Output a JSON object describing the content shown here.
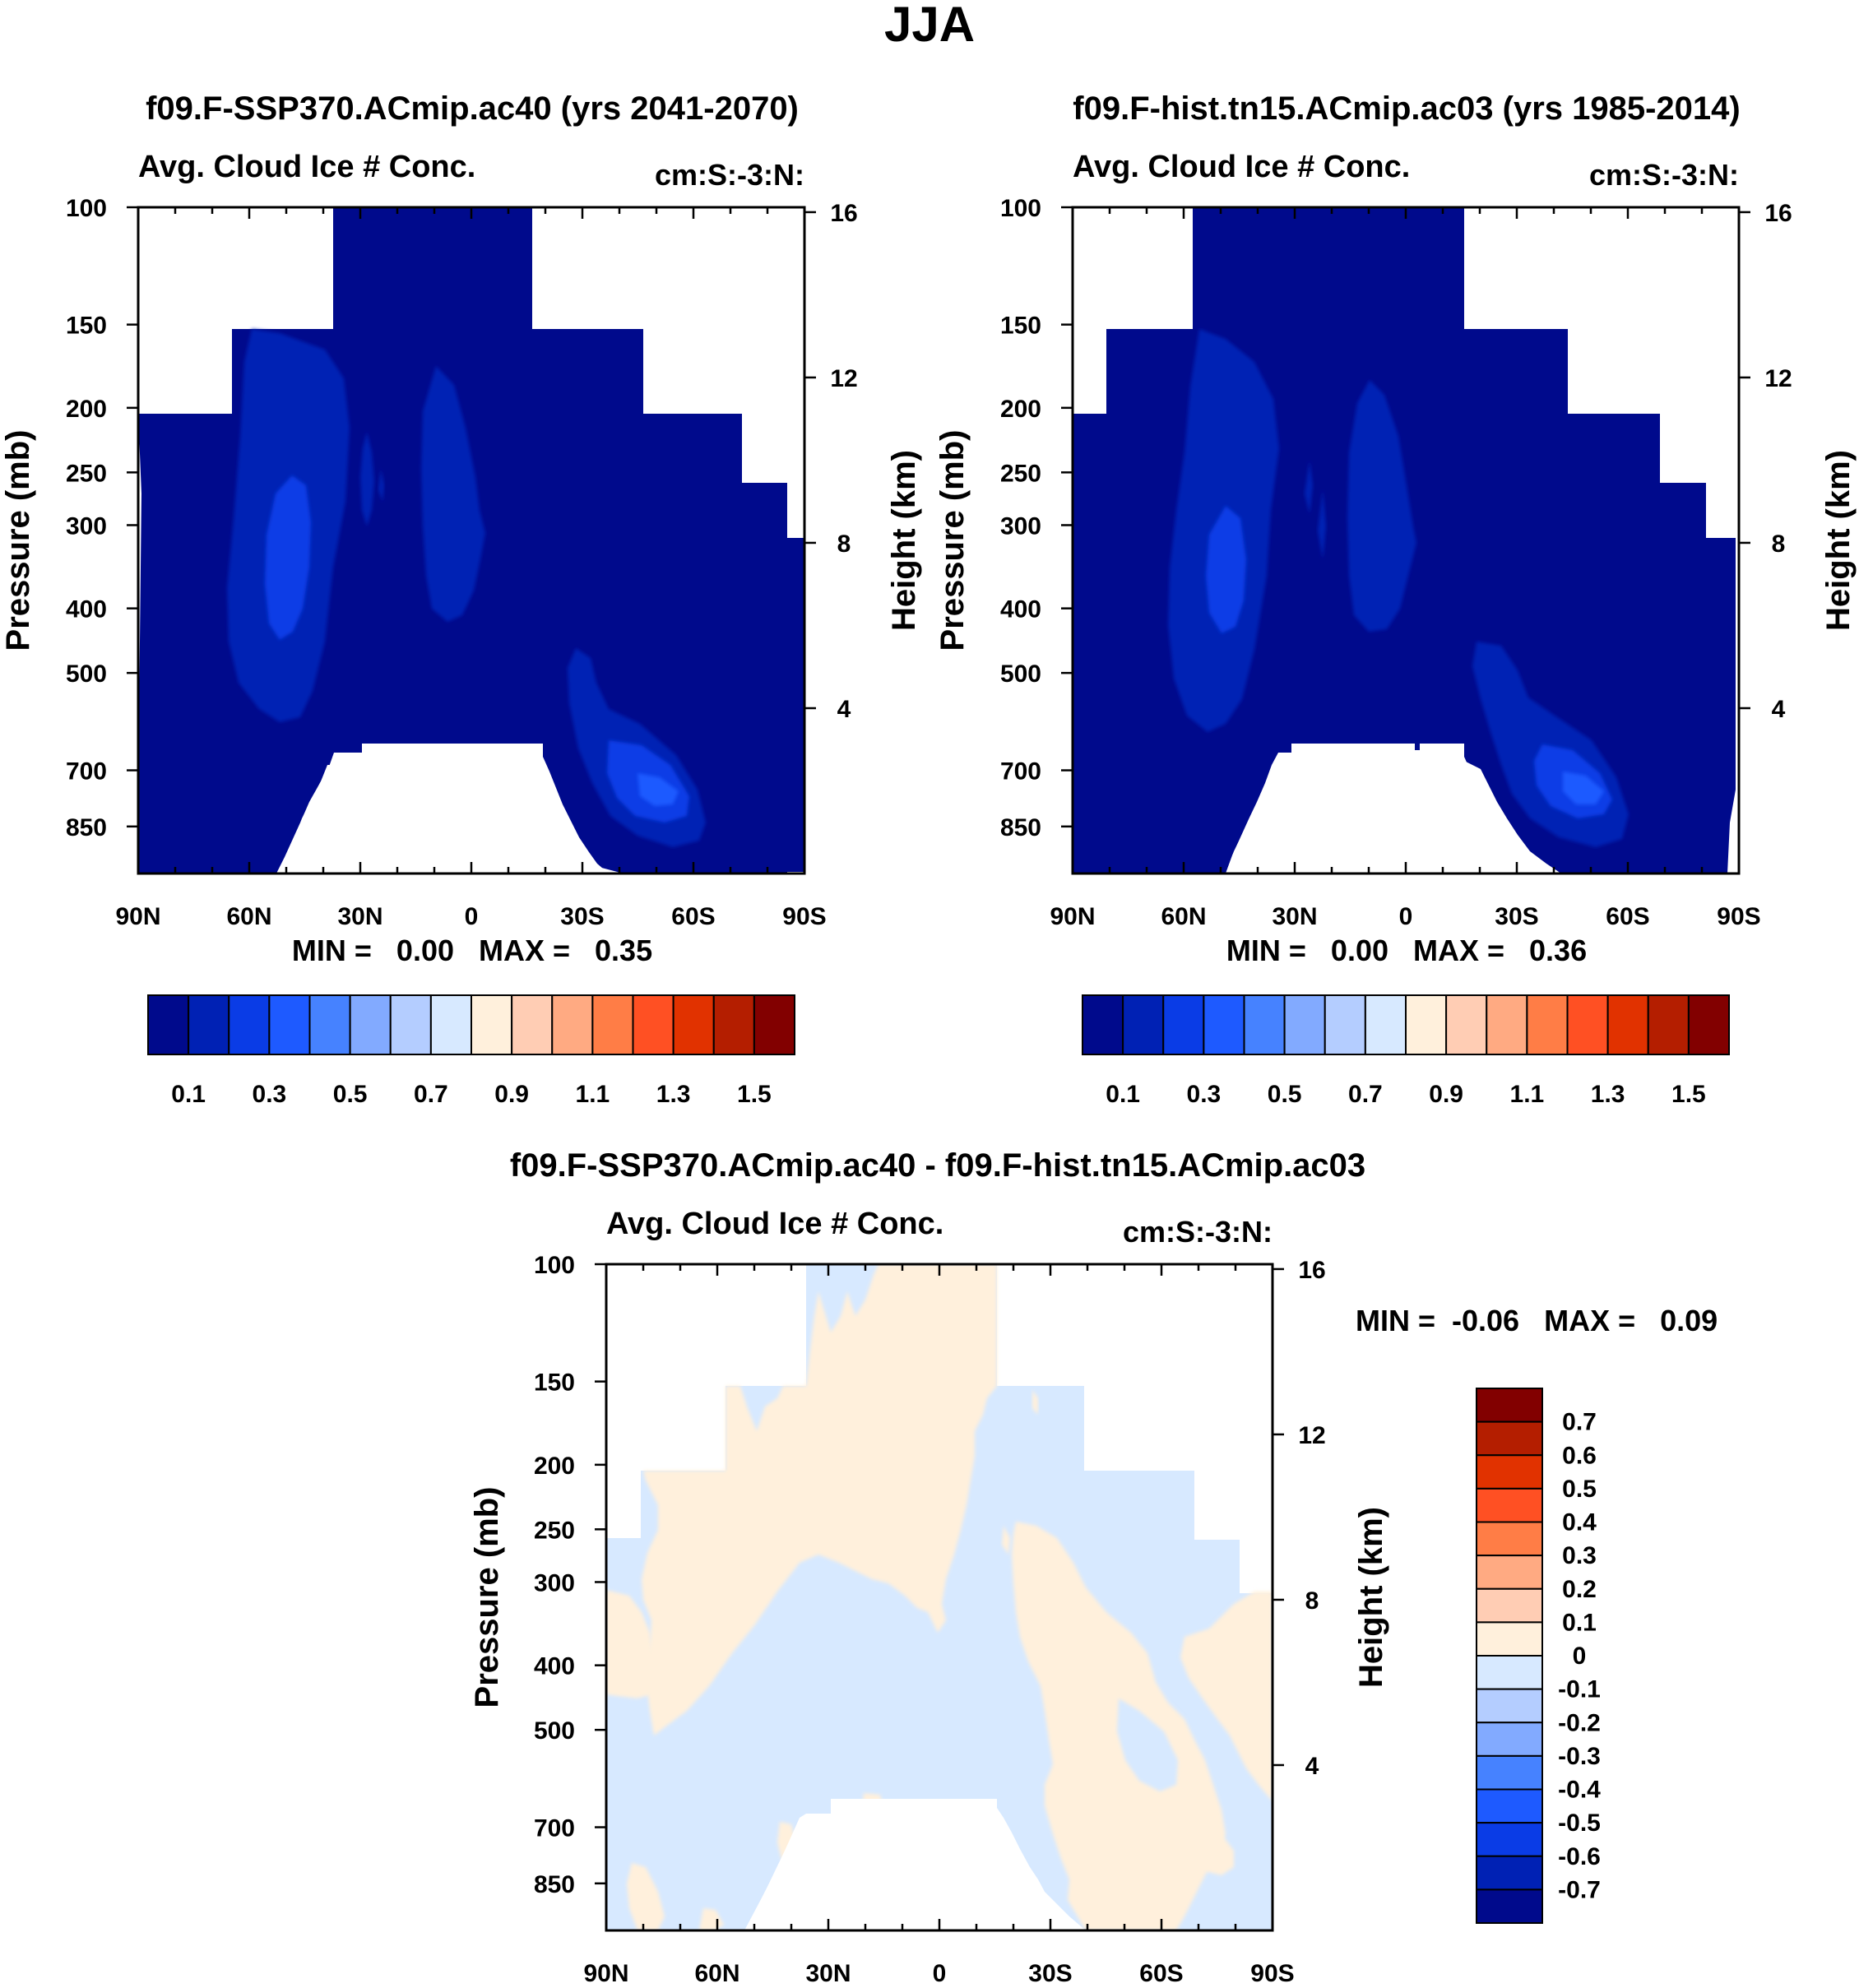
{
  "page_title": "JJA",
  "colors": {
    "ice_scale": [
      "#000a8c",
      "#0021b4",
      "#0a3ce6",
      "#1e5aff",
      "#4682ff",
      "#82aaff",
      "#b4cdff",
      "#d7e9ff",
      "#fff0dc",
      "#ffcdb4",
      "#ffaa82",
      "#ff7d46",
      "#ff5023",
      "#e13200",
      "#b41e00",
      "#820000"
    ],
    "diff_scale": [
      "#000a8c",
      "#0021b4",
      "#0a3ce6",
      "#1e5aff",
      "#4682ff",
      "#82aaff",
      "#b4cdff",
      "#d7e9ff",
      "#fff0dc",
      "#ffcdb4",
      "#ffaa82",
      "#ff7d46",
      "#ff5023",
      "#e13200",
      "#b41e00",
      "#820000"
    ]
  },
  "chart_data": [
    {
      "type": "heatmap",
      "title": "f09.F-SSP370.ACmip.ac40 (yrs 2041-2070)",
      "left_string": "Avg. Cloud Ice # Conc.",
      "right_string": "cm:S:-3:N:",
      "ylabel": "Pressure (mb)",
      "ylabel_right": "Height (km)",
      "x_ticks": [
        "90N",
        "60N",
        "30N",
        "0",
        "30S",
        "60S",
        "90S"
      ],
      "x_values": [
        90,
        60,
        30,
        0,
        -30,
        -60,
        -90
      ],
      "y_ticks": [
        "100",
        "150",
        "200",
        "250",
        "300",
        "400",
        "500",
        "700",
        "850"
      ],
      "y_values": [
        100,
        150,
        200,
        250,
        300,
        400,
        500,
        700,
        850
      ],
      "height_ticks": [
        "16",
        "12",
        "8",
        "4"
      ],
      "height_values": [
        16,
        12,
        8,
        4
      ],
      "ylim": [
        100,
        1000
      ],
      "min_max_label": "MIN =   0.00   MAX =   0.35",
      "min": 0.0,
      "max": 0.35,
      "colorbar_levels": [
        "0.1",
        "0.3",
        "0.5",
        "0.7",
        "0.9",
        "1.1",
        "1.3",
        "1.5"
      ],
      "colorbar_values": [
        0.1,
        0.3,
        0.5,
        0.7,
        0.9,
        1.1,
        1.3,
        1.5
      ],
      "colorbar_orientation": "horizontal"
    },
    {
      "type": "heatmap",
      "title": "f09.F-hist.tn15.ACmip.ac03 (yrs 1985-2014)",
      "left_string": "Avg. Cloud Ice # Conc.",
      "right_string": "cm:S:-3:N:",
      "ylabel": "Pressure (mb)",
      "ylabel_right": "Height (km)",
      "x_ticks": [
        "90N",
        "60N",
        "30N",
        "0",
        "30S",
        "60S",
        "90S"
      ],
      "x_values": [
        90,
        60,
        30,
        0,
        -30,
        -60,
        -90
      ],
      "y_ticks": [
        "100",
        "150",
        "200",
        "250",
        "300",
        "400",
        "500",
        "700",
        "850"
      ],
      "y_values": [
        100,
        150,
        200,
        250,
        300,
        400,
        500,
        700,
        850
      ],
      "height_ticks": [
        "16",
        "12",
        "8",
        "4"
      ],
      "height_values": [
        16,
        12,
        8,
        4
      ],
      "ylim": [
        100,
        1000
      ],
      "min_max_label": "MIN =   0.00   MAX =   0.36",
      "min": 0.0,
      "max": 0.36,
      "colorbar_levels": [
        "0.1",
        "0.3",
        "0.5",
        "0.7",
        "0.9",
        "1.1",
        "1.3",
        "1.5"
      ],
      "colorbar_values": [
        0.1,
        0.3,
        0.5,
        0.7,
        0.9,
        1.1,
        1.3,
        1.5
      ],
      "colorbar_orientation": "horizontal"
    },
    {
      "type": "heatmap",
      "title": "f09.F-SSP370.ACmip.ac40 - f09.F-hist.tn15.ACmip.ac03",
      "left_string": "Avg. Cloud Ice # Conc.",
      "right_string": "cm:S:-3:N:",
      "ylabel": "Pressure (mb)",
      "ylabel_right": "Height (km)",
      "x_ticks": [
        "90N",
        "60N",
        "30N",
        "0",
        "30S",
        "60S",
        "90S"
      ],
      "x_values": [
        90,
        60,
        30,
        0,
        -30,
        -60,
        -90
      ],
      "y_ticks": [
        "100",
        "150",
        "200",
        "250",
        "300",
        "400",
        "500",
        "700",
        "850"
      ],
      "y_values": [
        100,
        150,
        200,
        250,
        300,
        400,
        500,
        700,
        850
      ],
      "height_ticks": [
        "16",
        "12",
        "8",
        "4"
      ],
      "height_values": [
        16,
        12,
        8,
        4
      ],
      "ylim": [
        100,
        1000
      ],
      "min_max_label": "MIN =  -0.06   MAX =   0.09",
      "min": -0.06,
      "max": 0.09,
      "colorbar_levels": [
        "0.7",
        "0.6",
        "0.5",
        "0.4",
        "0.3",
        "0.2",
        "0.1",
        "0",
        "-0.1",
        "-0.2",
        "-0.3",
        "-0.4",
        "-0.5",
        "-0.6",
        "-0.7"
      ],
      "colorbar_values": [
        0.7,
        0.6,
        0.5,
        0.4,
        0.3,
        0.2,
        0.1,
        0,
        -0.1,
        -0.2,
        -0.3,
        -0.4,
        -0.5,
        -0.6,
        -0.7
      ],
      "colorbar_orientation": "vertical"
    }
  ]
}
